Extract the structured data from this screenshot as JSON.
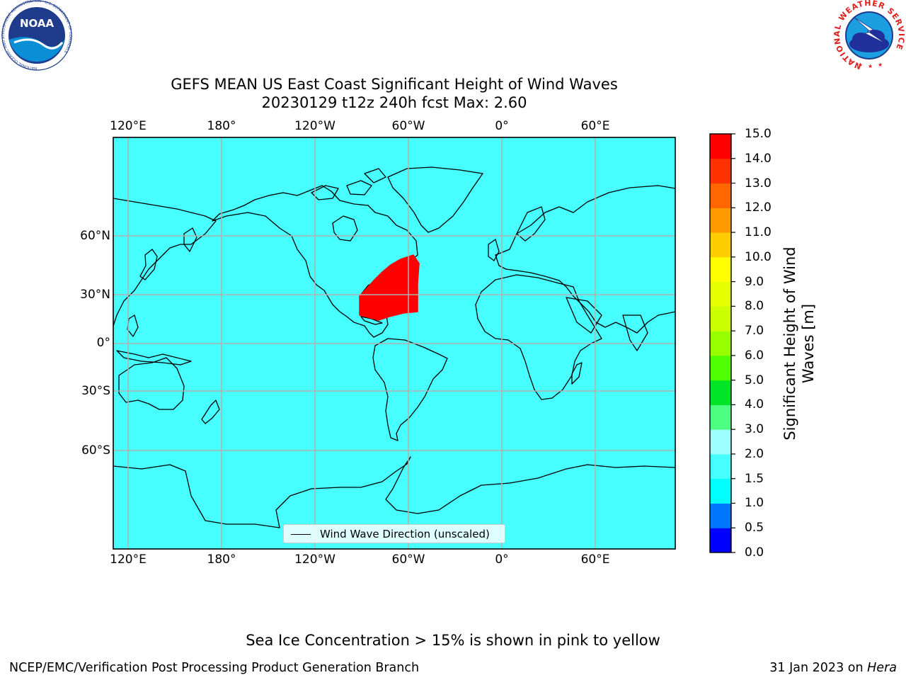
{
  "title": {
    "line1": "GEFS MEAN US East Coast Significant Height of Wind Waves",
    "line2": "20230129 t12z 240h fcst   Max: 2.60"
  },
  "map": {
    "lon_ticks": [
      "120°E",
      "180°",
      "120°W",
      "60°W",
      "0°",
      "60°E"
    ],
    "lat_ticks": [
      "60°N",
      "30°N",
      "0°",
      "30°S",
      "60°S"
    ],
    "ocean_color": "#47ffff",
    "field_color": "#ff0000",
    "gridline_color": "#b0b0b0"
  },
  "legend": {
    "label": "Wind Wave Direction (unscaled)"
  },
  "colorbar": {
    "label": "Significant Height of Wind Waves [m]",
    "ticks": [
      "0.0",
      "0.5",
      "1.0",
      "1.5",
      "2.0",
      "3.0",
      "4.0",
      "5.0",
      "6.0",
      "7.0",
      "8.0",
      "9.0",
      "10.0",
      "11.0",
      "12.0",
      "13.0",
      "14.0",
      "15.0"
    ],
    "colors": [
      "#0000ff",
      "#0077ff",
      "#00ffff",
      "#47ffff",
      "#9effff",
      "#4dff80",
      "#00e626",
      "#4dff00",
      "#99ff00",
      "#ccff00",
      "#e6ff00",
      "#ffff00",
      "#ffcc00",
      "#ff9900",
      "#ff6600",
      "#ff3300",
      "#ff0000"
    ]
  },
  "chart_data": {
    "type": "heatmap",
    "title": "GEFS MEAN US East Coast Significant Height of Wind Waves",
    "subtitle": "20230129 t12z 240h fcst   Max: 2.60",
    "variable": "Significant Height of Wind Waves [m]",
    "max_value": 2.6,
    "colorbar_range": [
      0.0,
      15.0
    ],
    "colorbar_levels": [
      0.0,
      0.5,
      1.0,
      1.5,
      2.0,
      3.0,
      4.0,
      5.0,
      6.0,
      7.0,
      8.0,
      9.0,
      10.0,
      11.0,
      12.0,
      13.0,
      14.0,
      15.0
    ],
    "x_ticks": [
      "120°E",
      "180°",
      "120°W",
      "60°W",
      "0°",
      "60°E"
    ],
    "y_ticks": [
      "60°N",
      "30°N",
      "0°",
      "30°S",
      "60°S"
    ],
    "grid": true,
    "legend_position": "bottom-center",
    "legend": [
      "Wind Wave Direction (unscaled)"
    ]
  },
  "footer": {
    "note": "Sea Ice Concentration > 15% is shown in pink to yellow",
    "left": "NCEP/EMC/Verification Post Processing Product Generation Branch",
    "date": "31 Jan 2023 on ",
    "machine": "Hera"
  },
  "logos": {
    "noaa": {
      "text": "NOAA",
      "ring_text": "NATIONAL OCEANIC AND ATMOSPHERIC ADMINISTRATION · U.S. DEPARTMENT OF COMMERCE"
    },
    "nws": {
      "ring_text": "NATIONAL WEATHER SERVICE"
    }
  }
}
